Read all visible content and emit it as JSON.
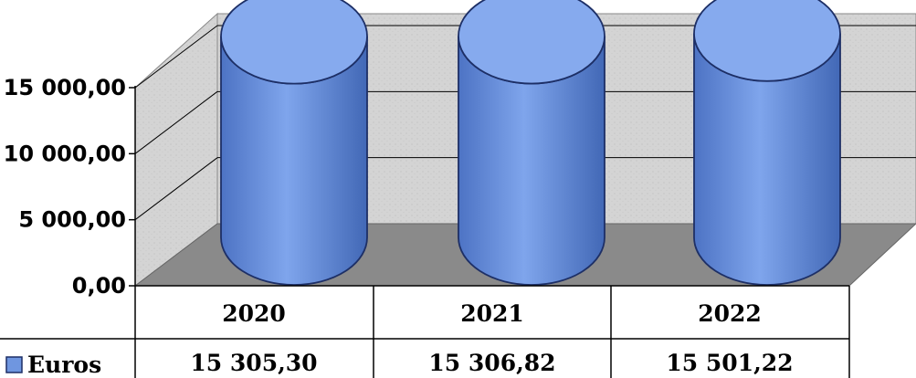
{
  "chart_data": {
    "type": "bar",
    "style": "3d-cylinder",
    "categories": [
      "2020",
      "2021",
      "2022"
    ],
    "series": [
      {
        "name": "Euros",
        "values": [
          15305.3,
          15306.82,
          15501.22
        ],
        "color": "#6f96e0"
      }
    ],
    "value_labels": [
      "15 305,30",
      "15 306,82",
      "15 501,22"
    ],
    "y_ticks": [
      {
        "value": 0,
        "label": "0,00"
      },
      {
        "value": 5000,
        "label": "5 000,00"
      },
      {
        "value": 10000,
        "label": "10 000,00"
      },
      {
        "value": 15000,
        "label": "15 000,00"
      }
    ],
    "ylim": [
      0,
      15000
    ],
    "grid": true,
    "data_table": true,
    "colors": {
      "wall": "#d4d4d4",
      "floor": "#8a8a8a",
      "bar_fill": "#6f96e0",
      "bar_outline": "#1d2f66"
    }
  }
}
